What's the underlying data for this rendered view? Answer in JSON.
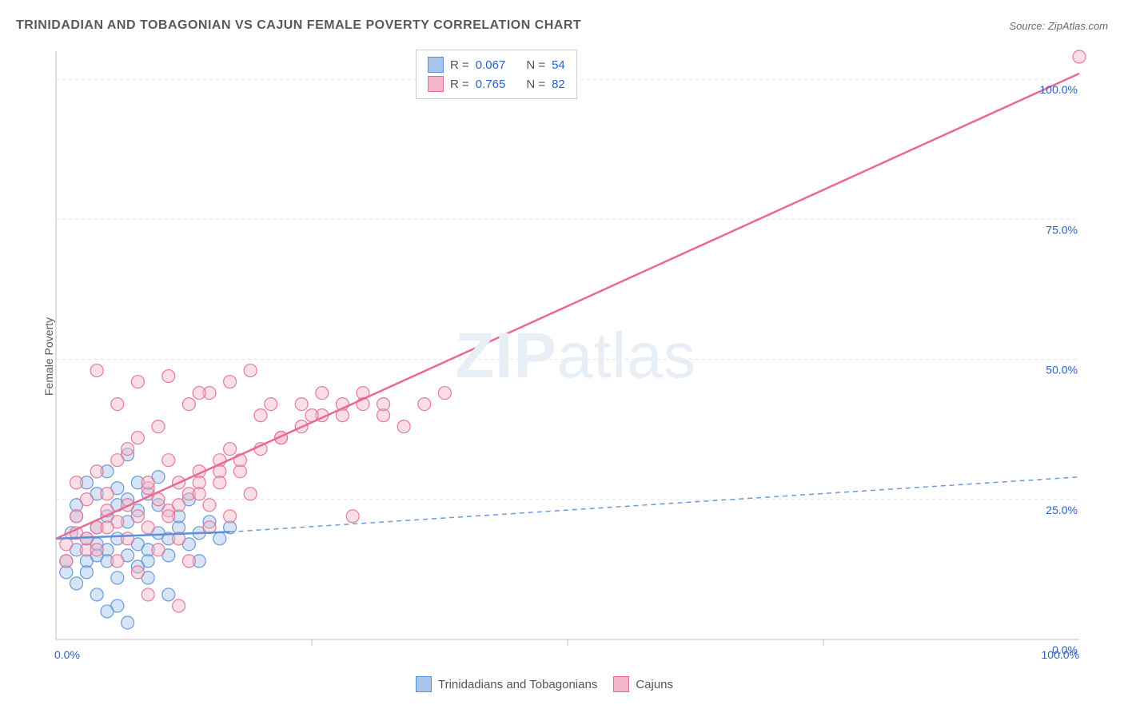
{
  "title": "TRINIDADIAN AND TOBAGONIAN VS CAJUN FEMALE POVERTY CORRELATION CHART",
  "source": "Source: ZipAtlas.com",
  "y_axis_label": "Female Poverty",
  "watermark": "ZIPatlas",
  "chart": {
    "type": "scatter-correlation",
    "background_color": "#ffffff",
    "grid_color": "#e5e5e5",
    "axis_color": "#bfbfbf",
    "tick_color": "#9aa0a8",
    "axis_label_color": "#2862c7",
    "title_color": "#5a5a5a",
    "xlim": [
      0,
      100
    ],
    "ylim": [
      0,
      105
    ],
    "x_ticks": [
      0,
      25,
      50,
      75,
      100
    ],
    "x_tick_labels": [
      "0.0%",
      "",
      "",
      "",
      "100.0%"
    ],
    "y_ticks": [
      0,
      25,
      50,
      75,
      100
    ],
    "y_tick_labels": [
      "0.0%",
      "25.0%",
      "50.0%",
      "75.0%",
      "100.0%"
    ],
    "marker_radius": 8,
    "marker_opacity": 0.45,
    "line_width": 2.5,
    "label_fontsize": 14,
    "title_fontsize": 16,
    "tick_fontsize": 14
  },
  "series": [
    {
      "name": "Trinidadians and Tobagonians",
      "color_stroke": "#5b8fd6",
      "color_fill": "#a7c4ea",
      "r_value": "0.067",
      "n_value": "54",
      "trend_line": {
        "x1": 0,
        "y1": 18,
        "x2": 17,
        "y2": 19.2,
        "dashed": false
      },
      "extrapolation": {
        "x1": 17,
        "y1": 19.2,
        "x2": 100,
        "y2": 29,
        "dashed": true
      },
      "points": [
        [
          1,
          14
        ],
        [
          2,
          16
        ],
        [
          1.5,
          19
        ],
        [
          3,
          18
        ],
        [
          2,
          22
        ],
        [
          4,
          17
        ],
        [
          1,
          12
        ],
        [
          3,
          14
        ],
        [
          5,
          16
        ],
        [
          2,
          24
        ],
        [
          4,
          26
        ],
        [
          6,
          18
        ],
        [
          7,
          15
        ],
        [
          3,
          28
        ],
        [
          5,
          22
        ],
        [
          8,
          17
        ],
        [
          6,
          24
        ],
        [
          9,
          16
        ],
        [
          4,
          20
        ],
        [
          2,
          10
        ],
        [
          7,
          21
        ],
        [
          5,
          14
        ],
        [
          8,
          23
        ],
        [
          10,
          19
        ],
        [
          3,
          12
        ],
        [
          6,
          27
        ],
        [
          9,
          14
        ],
        [
          11,
          18
        ],
        [
          4,
          15
        ],
        [
          7,
          25
        ],
        [
          12,
          20
        ],
        [
          5,
          30
        ],
        [
          8,
          13
        ],
        [
          10,
          24
        ],
        [
          6,
          11
        ],
        [
          9,
          26
        ],
        [
          13,
          17
        ],
        [
          7,
          33
        ],
        [
          11,
          15
        ],
        [
          4,
          8
        ],
        [
          14,
          19
        ],
        [
          8,
          28
        ],
        [
          12,
          22
        ],
        [
          6,
          6
        ],
        [
          15,
          21
        ],
        [
          9,
          11
        ],
        [
          13,
          25
        ],
        [
          7,
          3
        ],
        [
          16,
          18
        ],
        [
          10,
          29
        ],
        [
          5,
          5
        ],
        [
          11,
          8
        ],
        [
          14,
          14
        ],
        [
          17,
          20
        ]
      ]
    },
    {
      "name": "Cajuns",
      "color_stroke": "#e86a8f",
      "color_fill": "#f4b6c8",
      "r_value": "0.765",
      "n_value": "82",
      "trend_line": {
        "x1": 0,
        "y1": 18,
        "x2": 100,
        "y2": 101,
        "dashed": false
      },
      "extrapolation": null,
      "points": [
        [
          1,
          17
        ],
        [
          2,
          19
        ],
        [
          3,
          16
        ],
        [
          2,
          22
        ],
        [
          4,
          20
        ],
        [
          1,
          14
        ],
        [
          5,
          23
        ],
        [
          3,
          25
        ],
        [
          6,
          21
        ],
        [
          2,
          28
        ],
        [
          7,
          24
        ],
        [
          4,
          30
        ],
        [
          8,
          22
        ],
        [
          5,
          26
        ],
        [
          9,
          27
        ],
        [
          3,
          18
        ],
        [
          10,
          25
        ],
        [
          6,
          32
        ],
        [
          11,
          23
        ],
        [
          4,
          16
        ],
        [
          12,
          28
        ],
        [
          7,
          34
        ],
        [
          13,
          26
        ],
        [
          5,
          20
        ],
        [
          14,
          30
        ],
        [
          8,
          36
        ],
        [
          15,
          24
        ],
        [
          6,
          14
        ],
        [
          16,
          32
        ],
        [
          9,
          28
        ],
        [
          17,
          34
        ],
        [
          7,
          18
        ],
        [
          18,
          30
        ],
        [
          10,
          38
        ],
        [
          19,
          26
        ],
        [
          8,
          12
        ],
        [
          20,
          40
        ],
        [
          11,
          32
        ],
        [
          12,
          24
        ],
        [
          9,
          20
        ],
        [
          22,
          36
        ],
        [
          13,
          42
        ],
        [
          14,
          28
        ],
        [
          10,
          16
        ],
        [
          24,
          38
        ],
        [
          15,
          44
        ],
        [
          16,
          30
        ],
        [
          11,
          22
        ],
        [
          26,
          40
        ],
        [
          17,
          46
        ],
        [
          18,
          32
        ],
        [
          12,
          18
        ],
        [
          28,
          42
        ],
        [
          19,
          48
        ],
        [
          20,
          34
        ],
        [
          13,
          14
        ],
        [
          30,
          44
        ],
        [
          22,
          36
        ],
        [
          14,
          26
        ],
        [
          32,
          40
        ],
        [
          24,
          42
        ],
        [
          15,
          20
        ],
        [
          34,
          38
        ],
        [
          26,
          44
        ],
        [
          16,
          28
        ],
        [
          36,
          42
        ],
        [
          28,
          40
        ],
        [
          17,
          22
        ],
        [
          38,
          44
        ],
        [
          30,
          42
        ],
        [
          9,
          8
        ],
        [
          12,
          6
        ],
        [
          29,
          22
        ],
        [
          32,
          42
        ],
        [
          100,
          104
        ],
        [
          11,
          47
        ],
        [
          14,
          44
        ],
        [
          21,
          42
        ],
        [
          25,
          40
        ],
        [
          6,
          42
        ],
        [
          8,
          46
        ],
        [
          4,
          48
        ]
      ]
    }
  ],
  "legend_top": {
    "r_label": "R =",
    "n_label": "N ="
  },
  "legend_bottom": {
    "items": [
      "Trinidadians and Tobagonians",
      "Cajuns"
    ]
  }
}
